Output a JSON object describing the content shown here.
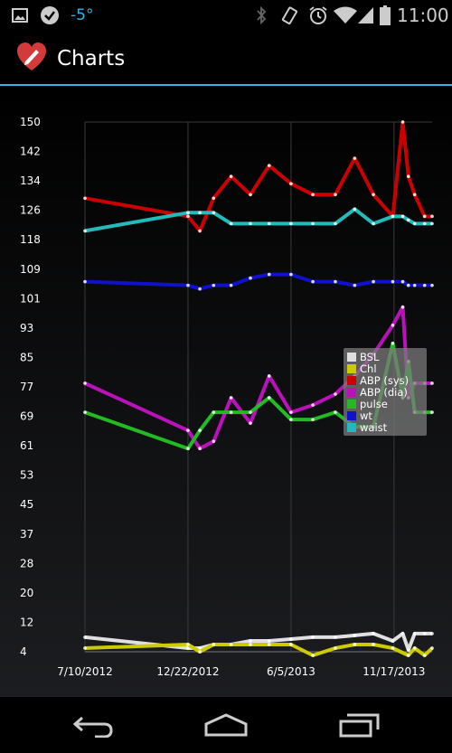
{
  "status_bar": {
    "temperature": "-5°",
    "time": "11:00",
    "icons": [
      "image-icon",
      "check-badge-icon",
      "bluetooth-icon",
      "vibrate-icon",
      "alarm-icon",
      "wifi-icon",
      "signal-icon",
      "battery-icon"
    ]
  },
  "app": {
    "title": "Charts",
    "logo_icon": "heart-pencil-icon",
    "accent_color": "#33b5e5"
  },
  "nav": {
    "icons": [
      "back-icon",
      "home-icon",
      "recent-apps-icon"
    ]
  },
  "chart_data": {
    "type": "line",
    "y_ticks": [
      "150",
      "142",
      "134",
      "126",
      "118",
      "109",
      "101",
      "93",
      "85",
      "77",
      "69",
      "61",
      "53",
      "45",
      "37",
      "28",
      "20",
      "12",
      "4"
    ],
    "x_ticks": [
      "7/10/2012",
      "12/22/2012",
      "6/5/2013",
      "11/17/2013"
    ],
    "ylim": [
      4,
      150
    ],
    "xlim": [
      "2012-07-10",
      "2014-01-17"
    ],
    "grid": true,
    "legend_position": "right",
    "series": [
      {
        "name": "BSL",
        "color": "#e0e0e0",
        "x": [
          "2012-07-10",
          "2012-12-22",
          "2013-01-10",
          "2013-02-01",
          "2013-03-01",
          "2013-04-01",
          "2013-05-01",
          "2013-06-05",
          "2013-07-10",
          "2013-08-15",
          "2013-09-15",
          "2013-10-15",
          "2013-11-15",
          "2013-12-01",
          "2013-12-10",
          "2013-12-20",
          "2014-01-05",
          "2014-01-17"
        ],
        "y": [
          8,
          5,
          5,
          6,
          6,
          7,
          7,
          7.5,
          8,
          8,
          8.5,
          9,
          7,
          9,
          4.5,
          9,
          9,
          9
        ]
      },
      {
        "name": "Chl",
        "color": "#cccc00",
        "x": [
          "2012-07-10",
          "2012-12-22",
          "2013-01-10",
          "2013-02-01",
          "2013-03-01",
          "2013-04-01",
          "2013-05-01",
          "2013-06-05",
          "2013-07-10",
          "2013-08-15",
          "2013-09-15",
          "2013-10-15",
          "2013-11-15",
          "2013-12-10",
          "2013-12-20",
          "2014-01-05",
          "2014-01-17"
        ],
        "y": [
          5,
          6,
          4,
          6,
          6,
          6,
          6,
          6,
          3,
          5,
          6,
          6,
          5,
          3,
          5,
          3,
          5
        ]
      },
      {
        "name": "ABP (sys)",
        "color": "#cc0000",
        "x": [
          "2012-07-10",
          "2012-12-22",
          "2013-01-10",
          "2013-02-01",
          "2013-03-01",
          "2013-04-01",
          "2013-05-01",
          "2013-06-05",
          "2013-07-10",
          "2013-08-15",
          "2013-09-15",
          "2013-10-15",
          "2013-11-15",
          "2013-12-01",
          "2013-12-10",
          "2013-12-20",
          "2014-01-05",
          "2014-01-17"
        ],
        "y": [
          129,
          124,
          120,
          129,
          135,
          130,
          138,
          133,
          130,
          130,
          140,
          130,
          124,
          150,
          135,
          130,
          124,
          124
        ]
      },
      {
        "name": "ABP (dia)",
        "color": "#bb11bb",
        "x": [
          "2012-07-10",
          "2012-12-22",
          "2013-01-10",
          "2013-02-01",
          "2013-03-01",
          "2013-04-01",
          "2013-05-01",
          "2013-06-05",
          "2013-07-10",
          "2013-08-15",
          "2013-09-15",
          "2013-10-15",
          "2013-11-15",
          "2013-12-01",
          "2013-12-10",
          "2013-12-20",
          "2014-01-05",
          "2014-01-17"
        ],
        "y": [
          78,
          65,
          60,
          62,
          74,
          67,
          80,
          70,
          72,
          75,
          80,
          86,
          94,
          99,
          74,
          78,
          78,
          78
        ]
      },
      {
        "name": "pulse",
        "color": "#22bb22",
        "x": [
          "2012-07-10",
          "2012-12-22",
          "2013-01-10",
          "2013-02-01",
          "2013-03-01",
          "2013-04-01",
          "2013-05-01",
          "2013-06-05",
          "2013-07-10",
          "2013-08-15",
          "2013-09-15",
          "2013-10-15",
          "2013-11-15",
          "2013-12-01",
          "2013-12-10",
          "2013-12-20",
          "2014-01-05",
          "2014-01-17"
        ],
        "y": [
          70,
          60,
          65,
          70,
          70,
          70,
          74,
          68,
          68,
          70,
          66,
          66,
          89,
          74,
          84,
          70,
          70,
          70
        ]
      },
      {
        "name": "wt",
        "color": "#1111cc",
        "x": [
          "2012-07-10",
          "2012-12-22",
          "2013-01-10",
          "2013-02-01",
          "2013-03-01",
          "2013-04-01",
          "2013-05-01",
          "2013-06-05",
          "2013-07-10",
          "2013-08-15",
          "2013-09-15",
          "2013-10-15",
          "2013-11-15",
          "2013-12-01",
          "2013-12-10",
          "2013-12-20",
          "2014-01-05",
          "2014-01-17"
        ],
        "y": [
          106,
          105,
          104,
          105,
          105,
          107,
          108,
          108,
          106,
          106,
          105,
          106,
          106,
          106,
          105,
          105,
          105,
          105
        ]
      },
      {
        "name": "waist",
        "color": "#22bbbb",
        "x": [
          "2012-07-10",
          "2012-12-22",
          "2013-01-10",
          "2013-02-01",
          "2013-03-01",
          "2013-04-01",
          "2013-05-01",
          "2013-06-05",
          "2013-07-10",
          "2013-08-15",
          "2013-09-15",
          "2013-10-15",
          "2013-11-15",
          "2013-12-01",
          "2013-12-10",
          "2013-12-20",
          "2014-01-05",
          "2014-01-17"
        ],
        "y": [
          120,
          125,
          125,
          125,
          122,
          122,
          122,
          122,
          122,
          122,
          126,
          122,
          124,
          124,
          123,
          122,
          122,
          122
        ]
      }
    ]
  }
}
